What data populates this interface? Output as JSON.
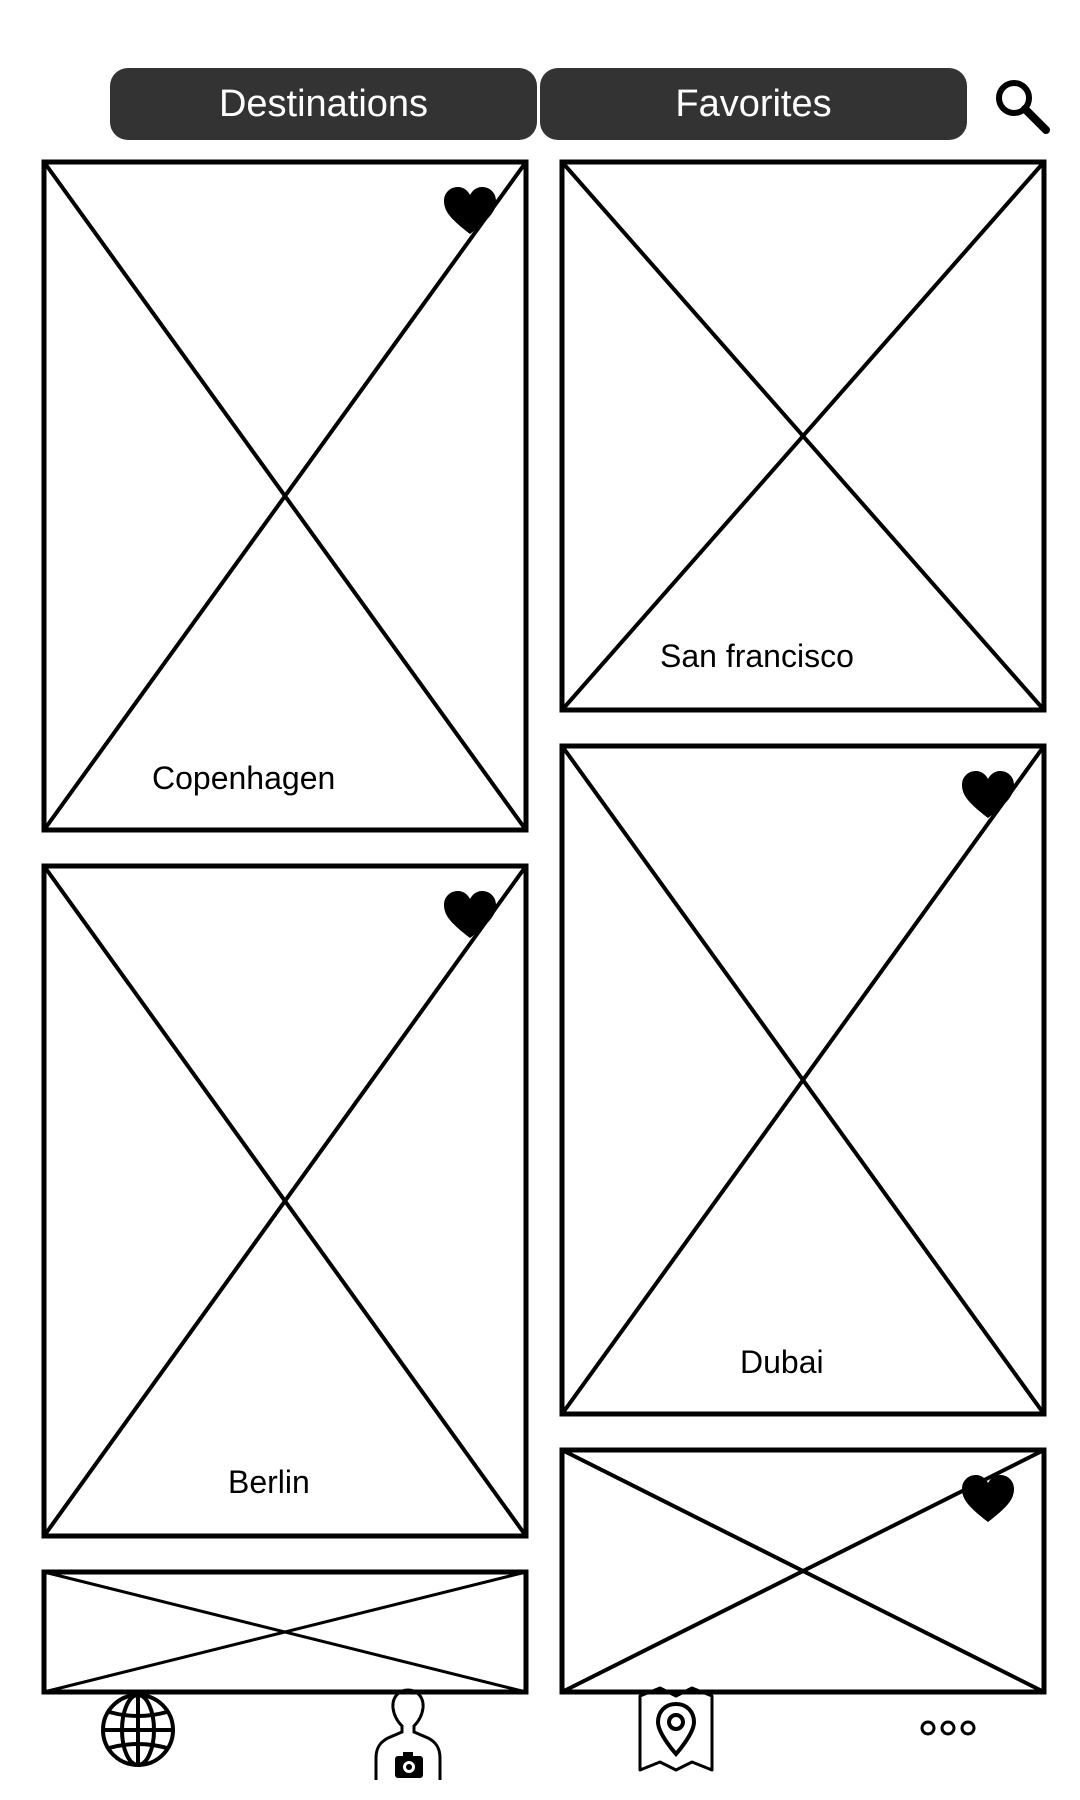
{
  "header": {
    "tabs": [
      {
        "label": "Destinations"
      },
      {
        "label": "Favorites"
      }
    ],
    "search_icon": "search-icon"
  },
  "cards": [
    {
      "label": "Copenhagen",
      "favorited": true
    },
    {
      "label": "San francisco",
      "favorited": false
    },
    {
      "label": "Berlin",
      "favorited": true
    },
    {
      "label": "Dubai",
      "favorited": true
    },
    {
      "label": "",
      "favorited": false
    },
    {
      "label": "",
      "favorited": true
    }
  ],
  "bottom_nav": [
    {
      "icon": "globe-icon"
    },
    {
      "icon": "photographer-icon"
    },
    {
      "icon": "map-pin-icon"
    },
    {
      "icon": "more-icon"
    }
  ]
}
